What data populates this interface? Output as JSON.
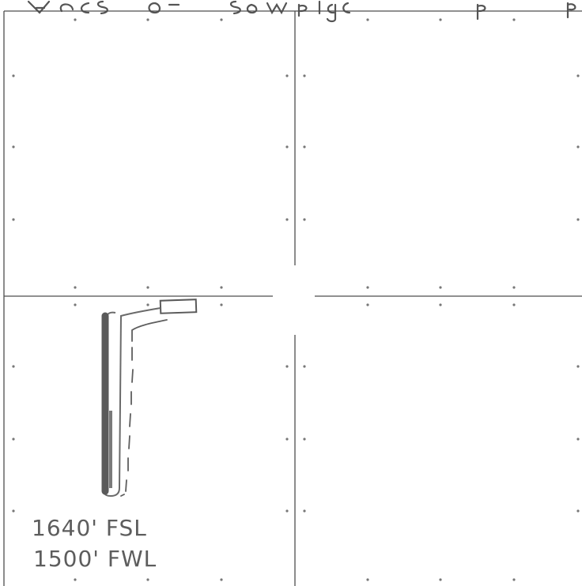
{
  "labels": {
    "footage_south": "1640' FSL",
    "footage_west": "1500' FWL"
  },
  "colors": {
    "grid_line": "#4d4d4d",
    "pencil": "#5c5c5c",
    "pencil_dark": "#6f6f6f",
    "paper": "#ffffff"
  }
}
